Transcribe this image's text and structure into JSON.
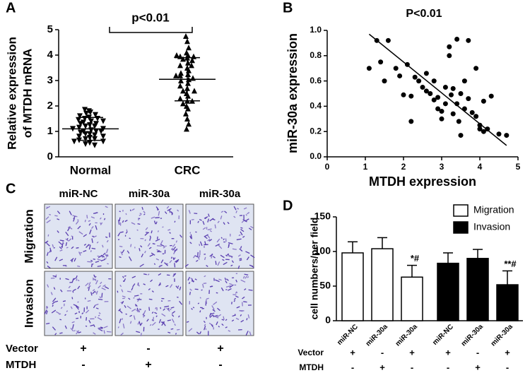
{
  "chart_data": [
    {
      "type": "dot",
      "panel": "A",
      "ylabel": [
        "Relative expression",
        "of MTDH mRNA"
      ],
      "annotation": "p<0.01",
      "categories": [
        "Normal",
        "CRC"
      ],
      "markers": [
        "triangle-down",
        "triangle-up"
      ],
      "color": "#000000",
      "groups": [
        {
          "values": [
            1.8,
            1.75,
            1.7,
            1.65,
            1.6,
            1.55,
            1.5,
            1.5,
            1.45,
            1.4,
            1.35,
            1.3,
            1.3,
            1.25,
            1.2,
            1.2,
            1.15,
            1.1,
            1.1,
            1.05,
            1.0,
            1.0,
            0.95,
            0.9,
            0.9,
            0.85,
            0.8,
            0.8,
            0.75,
            0.7,
            0.7,
            0.65,
            0.6,
            0.55,
            0.5,
            0.45,
            1.85,
            1.4,
            1.0,
            0.6
          ],
          "mean": 1.1,
          "sd": 0.45
        },
        {
          "values": [
            4.75,
            4.55,
            4.3,
            4.1,
            4.0,
            3.95,
            3.9,
            3.85,
            3.8,
            3.7,
            3.6,
            3.5,
            3.4,
            3.3,
            3.25,
            3.2,
            3.1,
            3.05,
            3.0,
            2.9,
            2.8,
            2.7,
            2.6,
            2.5,
            2.4,
            2.3,
            2.2,
            2.1,
            2.0,
            1.9,
            1.7,
            1.5,
            1.3,
            1.1,
            3.95,
            3.6,
            3.2,
            2.6,
            2.2,
            4.0
          ],
          "mean": 3.05,
          "sd": 0.85
        }
      ],
      "ylim": [
        0,
        5
      ],
      "yticks": [
        0,
        1,
        2,
        3,
        4,
        5
      ]
    },
    {
      "type": "scatter",
      "panel": "B",
      "title": "P<0.01",
      "xlabel": "MTDH expression",
      "ylabel": "miR-30a expression",
      "color": "#000000",
      "x": [
        1.1,
        1.3,
        1.4,
        1.5,
        1.6,
        1.8,
        1.9,
        2.0,
        2.1,
        2.2,
        2.2,
        2.3,
        2.4,
        2.5,
        2.6,
        2.7,
        2.8,
        2.8,
        2.9,
        2.9,
        3.0,
        3.0,
        3.1,
        3.1,
        3.2,
        3.2,
        3.25,
        3.3,
        3.4,
        3.4,
        3.45,
        3.5,
        3.5,
        3.6,
        3.6,
        3.7,
        3.7,
        3.8,
        3.9,
        3.9,
        4.0,
        4.0,
        4.1,
        4.1,
        4.2,
        4.3,
        4.5,
        4.7,
        3.3,
        2.6
      ],
      "y": [
        0.7,
        0.92,
        0.75,
        0.6,
        0.92,
        0.7,
        0.64,
        0.49,
        0.73,
        0.48,
        0.28,
        0.63,
        0.6,
        0.55,
        0.66,
        0.5,
        0.6,
        0.45,
        0.47,
        0.38,
        0.36,
        0.3,
        0.42,
        0.55,
        0.87,
        0.8,
        0.49,
        0.34,
        0.93,
        0.42,
        0.28,
        0.5,
        0.17,
        0.38,
        0.6,
        0.92,
        0.46,
        0.35,
        0.7,
        0.32,
        0.22,
        0.25,
        0.44,
        0.2,
        0.22,
        0.48,
        0.18,
        0.17,
        0.54,
        0.52
      ],
      "trend_x": [
        1.1,
        4.7
      ],
      "trend_y": [
        0.97,
        0.09
      ],
      "xlim": [
        0,
        5
      ],
      "xticks": [
        0,
        1,
        2,
        3,
        4,
        5
      ],
      "ylim": [
        0,
        1
      ],
      "yticks": [
        {
          "value": 0,
          "label": "0.0"
        },
        {
          "value": 0.2,
          "label": "0.2"
        },
        {
          "value": 0.4,
          "label": "0.4"
        },
        {
          "value": 0.6,
          "label": "0.6"
        },
        {
          "value": 0.8,
          "label": "0.8"
        },
        {
          "value": 1,
          "label": "1.0"
        }
      ]
    },
    {
      "type": "bar",
      "panel": "D",
      "ylabel": "cell numbers/per field",
      "categories": [
        "miR-NC",
        "miR-30a",
        "miR-30a",
        "miR-NC",
        "miR-30a",
        "miR-30a"
      ],
      "series": [
        {
          "name": "Migration",
          "color": "#ffffff",
          "values": [
            98,
            104,
            63,
            null,
            null,
            null
          ],
          "errors": [
            16,
            16,
            17,
            null,
            null,
            null
          ]
        },
        {
          "name": "Invasion",
          "color": "#000000",
          "values": [
            null,
            null,
            null,
            83,
            90,
            52
          ],
          "errors": [
            null,
            null,
            null,
            15,
            13,
            20
          ]
        }
      ],
      "annotations": [
        null,
        null,
        "*#",
        null,
        null,
        "**#"
      ],
      "conditions": [
        {
          "label": "Vector",
          "marks": [
            "+",
            "-",
            "+",
            "+",
            "-",
            "+"
          ]
        },
        {
          "label": "MTDH",
          "marks": [
            "-",
            "+",
            "-",
            "-",
            "+",
            "-"
          ]
        }
      ],
      "ylim": [
        0,
        150
      ],
      "yticks": [
        0,
        50,
        100,
        150
      ],
      "legend": "top-right"
    }
  ],
  "panel_c": {
    "panel": "C",
    "columns": [
      "miR-NC",
      "miR-30a",
      "miR-30a"
    ],
    "rows": [
      "Migration",
      "Invasion"
    ],
    "conditions": [
      {
        "label": "Vector",
        "marks": [
          "+",
          "-",
          "+"
        ]
      },
      {
        "label": "MTDH",
        "marks": [
          "-",
          "+",
          "-"
        ]
      }
    ]
  }
}
